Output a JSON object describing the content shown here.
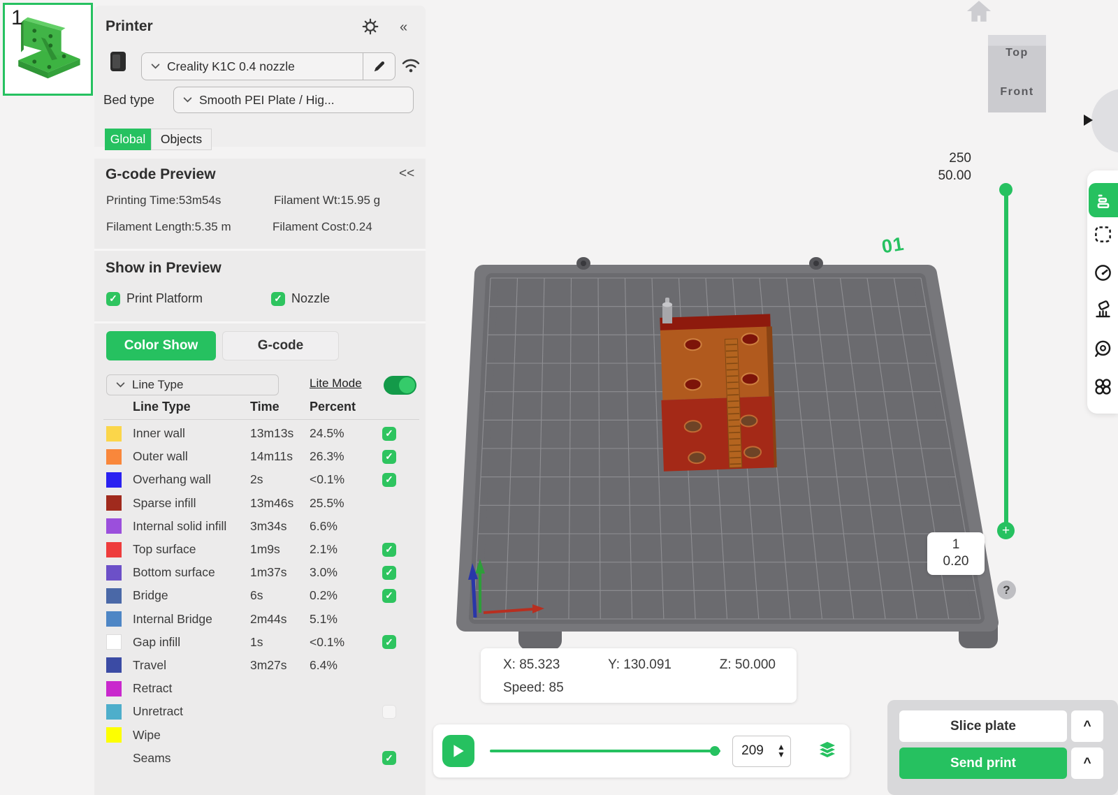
{
  "thumbnail": {
    "index": "1"
  },
  "printer": {
    "title": "Printer",
    "collapse": "«",
    "model": "Creality K1C 0.4 nozzle",
    "bed_type_label": "Bed type",
    "bed_type_value": "Smooth PEI Plate / Hig...",
    "tabs": {
      "global": "Global",
      "objects": "Objects"
    }
  },
  "gcode_preview": {
    "title": "G-code Preview",
    "collapse": "<<",
    "printing_time": "Printing Time:53m54s",
    "filament_wt": "Filament Wt:15.95 g",
    "filament_length": "Filament Length:5.35 m",
    "filament_cost": "Filament Cost:0.24"
  },
  "show_in_preview": {
    "title": "Show in Preview",
    "print_platform": "Print Platform",
    "nozzle": "Nozzle",
    "check_glyph": "✓"
  },
  "preview_tabs": {
    "color_show": "Color Show",
    "gcode": "G-code"
  },
  "line_type_controls": {
    "dropdown": "Line Type",
    "lite_mode": "Lite Mode",
    "toggle_on": true
  },
  "table": {
    "headers": [
      "Line Type",
      "Time",
      "Percent"
    ],
    "rows": [
      {
        "color": "#FBD64A",
        "label": "Inner wall",
        "time": "13m13s",
        "percent": "24.5%",
        "check": "checked"
      },
      {
        "color": "#F9873B",
        "label": "Outer wall",
        "time": "14m11s",
        "percent": "26.3%",
        "check": "checked"
      },
      {
        "color": "#2A21F1",
        "label": "Overhang wall",
        "time": "2s",
        "percent": "<0.1%",
        "check": "checked"
      },
      {
        "color": "#A02A1D",
        "label": "Sparse infill",
        "time": "13m46s",
        "percent": "25.5%",
        "check": "none"
      },
      {
        "color": "#9B4FDC",
        "label": "Internal solid infill",
        "time": "3m34s",
        "percent": "6.6%",
        "check": "none"
      },
      {
        "color": "#EE3C3C",
        "label": "Top surface",
        "time": "1m9s",
        "percent": "2.1%",
        "check": "checked"
      },
      {
        "color": "#6C50C8",
        "label": "Bottom surface",
        "time": "1m37s",
        "percent": "3.0%",
        "check": "checked"
      },
      {
        "color": "#4A68A7",
        "label": "Bridge",
        "time": "6s",
        "percent": "0.2%",
        "check": "checked"
      },
      {
        "color": "#4E86C5",
        "label": "Internal Bridge",
        "time": "2m44s",
        "percent": "5.1%",
        "check": "none"
      },
      {
        "color": "#FFFFFF",
        "label": "Gap infill",
        "time": "1s",
        "percent": "<0.1%",
        "check": "checked"
      },
      {
        "color": "#3B4BA4",
        "label": "Travel",
        "time": "3m27s",
        "percent": "6.4%",
        "check": "none"
      },
      {
        "color": "#C928CD",
        "label": "Retract",
        "time": "",
        "percent": "",
        "check": "none"
      },
      {
        "color": "#4EAECB",
        "label": "Unretract",
        "time": "",
        "percent": "",
        "check": "unchecked"
      },
      {
        "color": "#FDFF00",
        "label": "Wipe",
        "time": "",
        "percent": "",
        "check": "none"
      },
      {
        "color": "",
        "label": "Seams",
        "time": "",
        "percent": "",
        "check": "checked"
      }
    ]
  },
  "viewport": {
    "layer_badge": "01",
    "slider_max": "250",
    "slider_height": "50.00",
    "plus_glyph": "+",
    "layer_current": "1",
    "layer_height": "0.20",
    "help": "?",
    "view_cube": {
      "top": "Top",
      "front": "Front"
    },
    "status": {
      "x": "X: 85.323",
      "y": "Y: 130.091",
      "z": "Z: 50.000",
      "speed": "Speed: 85"
    }
  },
  "playback": {
    "layer_value": "209",
    "up_glyph": "▲",
    "down_glyph": "▼"
  },
  "actions": {
    "slice": "Slice plate",
    "send": "Send print",
    "caret": "^"
  },
  "colors": {
    "accent": "#26C160",
    "bed_rim": "#77777B",
    "bed_plate": "#6B6B6F"
  }
}
